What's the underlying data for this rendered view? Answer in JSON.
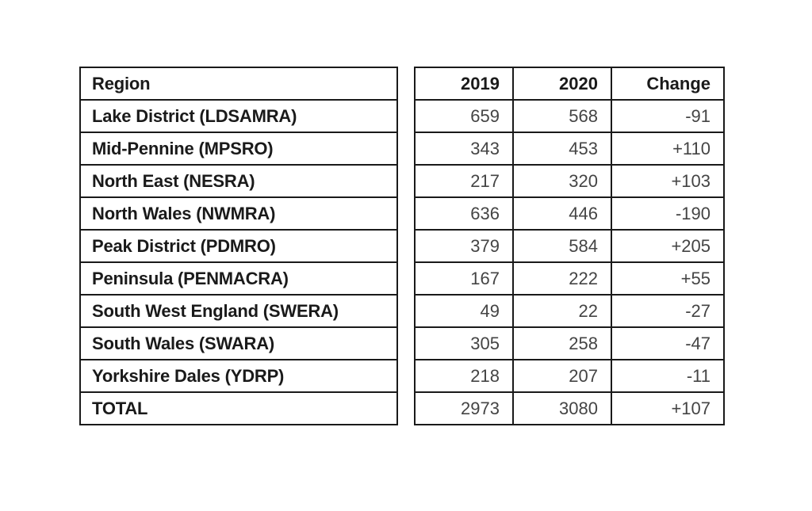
{
  "chart_data": {
    "type": "table",
    "columns": [
      "Region",
      "2019",
      "2020",
      "Change"
    ],
    "rows": [
      {
        "region": "Lake District (LDSAMRA)",
        "y2019": "659",
        "y2020": "568",
        "change": "-91"
      },
      {
        "region": "Mid-Pennine (MPSRO)",
        "y2019": "343",
        "y2020": "453",
        "change": "+110"
      },
      {
        "region": "North East (NESRA)",
        "y2019": "217",
        "y2020": "320",
        "change": "+103"
      },
      {
        "region": "North Wales (NWMRA)",
        "y2019": "636",
        "y2020": "446",
        "change": "-190"
      },
      {
        "region": "Peak District (PDMRO)",
        "y2019": "379",
        "y2020": "584",
        "change": "+205"
      },
      {
        "region": "Peninsula (PENMACRA)",
        "y2019": "167",
        "y2020": "222",
        "change": "+55"
      },
      {
        "region": "South West England (SWERA)",
        "y2019": "49",
        "y2020": "22",
        "change": "-27"
      },
      {
        "region": "South Wales (SWARA)",
        "y2019": "305",
        "y2020": "258",
        "change": "-47"
      },
      {
        "region": "Yorkshire Dales (YDRP)",
        "y2019": "218",
        "y2020": "207",
        "change": "-11"
      },
      {
        "region": "TOTAL",
        "y2019": "2973",
        "y2020": "3080",
        "change": "+107"
      }
    ]
  }
}
